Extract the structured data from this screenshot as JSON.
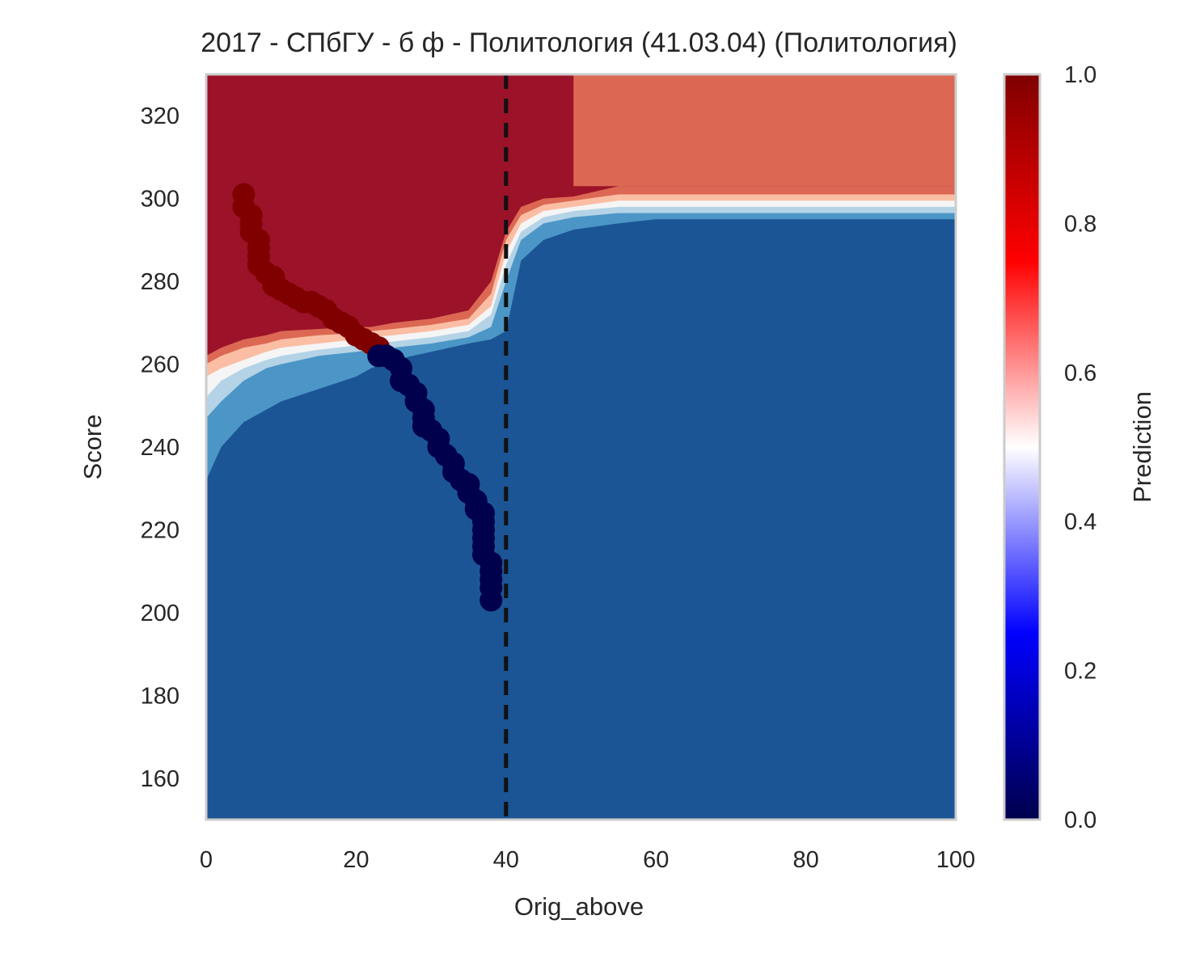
{
  "chart_data": {
    "type": "heatmap",
    "title": "2017 - СПбГУ - б ф - Политология (41.03.04) (Политология)",
    "xlabel": "Orig_above",
    "ylabel": "Score",
    "xlim": [
      0,
      100
    ],
    "ylim": [
      150,
      330
    ],
    "x_ticks": [
      0,
      20,
      40,
      60,
      80,
      100
    ],
    "y_ticks": [
      160,
      180,
      200,
      220,
      240,
      260,
      280,
      300,
      320
    ],
    "grid": false,
    "colorbar": {
      "label": "Prediction",
      "range": [
        0,
        1
      ],
      "ticks": [
        "0.0",
        "0.2",
        "0.4",
        "0.6",
        "0.8",
        "1.0"
      ],
      "colormap": "seismic",
      "stops": [
        "#00004c",
        "#0000ff",
        "#ffffff",
        "#ff0000",
        "#7f0000"
      ]
    },
    "threshold_line": {
      "x": 40,
      "style": "dashed",
      "color": "#111111"
    },
    "contour_colors": {
      "dark_red": "#9b1229",
      "light_red": "#dc6854",
      "pink": "#fbbea4",
      "near_white": "#f5f5f5",
      "light_blue": "#b4d3e6",
      "mid_blue": "#4b96c6",
      "dark_blue": "#1b5596"
    },
    "contours": {
      "x": [
        0,
        2,
        5,
        8,
        10,
        15,
        20,
        22,
        25,
        30,
        35,
        38,
        40,
        42,
        45,
        49,
        55,
        60,
        70,
        80,
        90,
        100
      ],
      "boundary_dark_red": [
        262,
        264,
        266,
        267,
        268,
        268.5,
        269,
        269,
        270,
        271,
        273,
        280,
        292,
        298,
        300,
        300.5,
        303,
        303,
        303,
        303,
        303,
        303
      ],
      "boundary_light_red": [
        260,
        262,
        264,
        265,
        266,
        267,
        267.5,
        268,
        268.5,
        269.5,
        271,
        277,
        290,
        296,
        298.5,
        299.5,
        301,
        301,
        301,
        301,
        301,
        301
      ],
      "boundary_pink": [
        257,
        259,
        261,
        263,
        264,
        265,
        266,
        266.5,
        267,
        268,
        269.5,
        274,
        287,
        294,
        297,
        298,
        299.5,
        299.5,
        299.5,
        299.5,
        299.5,
        299.5
      ],
      "boundary_near_white": [
        252,
        256,
        259,
        261,
        262,
        263.5,
        264.5,
        265,
        265.5,
        266.5,
        268,
        272,
        284,
        292,
        295.5,
        297,
        298,
        298,
        298,
        298,
        298,
        298
      ],
      "boundary_light_blue": [
        247,
        251,
        256,
        259,
        260,
        262,
        263,
        263.5,
        264,
        265,
        266.5,
        269,
        280,
        290,
        294,
        295.5,
        296.5,
        296.5,
        296.5,
        296.5,
        296.5,
        296.5
      ],
      "boundary_mid_blue": [
        232,
        240,
        246,
        249,
        251,
        254,
        257,
        259,
        261,
        263,
        265,
        266,
        268,
        285,
        290,
        292.5,
        294,
        295,
        295,
        295,
        295,
        295
      ]
    },
    "right_region": {
      "x_from": 49,
      "y_from": 303,
      "value_color": "#dc6854"
    },
    "series": [
      {
        "color": "#800000",
        "points": [
          [
            5,
            301
          ],
          [
            5,
            298
          ],
          [
            6,
            296
          ],
          [
            6,
            294
          ],
          [
            6,
            292
          ],
          [
            7,
            290
          ],
          [
            7,
            288
          ],
          [
            7,
            286
          ],
          [
            7,
            284
          ],
          [
            8,
            282
          ],
          [
            9,
            281
          ],
          [
            9,
            279
          ],
          [
            10,
            278
          ],
          [
            11,
            277
          ],
          [
            12,
            276
          ],
          [
            13,
            275
          ],
          [
            14,
            275
          ],
          [
            15,
            274
          ],
          [
            16,
            273
          ],
          [
            17,
            271
          ],
          [
            18,
            270
          ],
          [
            19,
            269
          ],
          [
            20,
            267
          ],
          [
            21,
            266
          ],
          [
            22,
            265
          ],
          [
            23,
            264
          ]
        ]
      },
      {
        "color": "#00004c",
        "points": [
          [
            23,
            262
          ],
          [
            24,
            262
          ],
          [
            25,
            261
          ],
          [
            26,
            259
          ],
          [
            26,
            256
          ],
          [
            27,
            255
          ],
          [
            28,
            253
          ],
          [
            28,
            251
          ],
          [
            29,
            249
          ],
          [
            29,
            247
          ],
          [
            29,
            245
          ],
          [
            30,
            244
          ],
          [
            31,
            242
          ],
          [
            31,
            240
          ],
          [
            32,
            238
          ],
          [
            33,
            236
          ],
          [
            33,
            234
          ],
          [
            34,
            232
          ],
          [
            35,
            231
          ],
          [
            35,
            229
          ],
          [
            36,
            227
          ],
          [
            36,
            225
          ],
          [
            37,
            224
          ],
          [
            37,
            222
          ],
          [
            37,
            220
          ],
          [
            37,
            218
          ],
          [
            37,
            216
          ],
          [
            37,
            214
          ],
          [
            38,
            212
          ],
          [
            38,
            210
          ],
          [
            38,
            208
          ],
          [
            38,
            206
          ],
          [
            38,
            203
          ]
        ]
      }
    ]
  }
}
